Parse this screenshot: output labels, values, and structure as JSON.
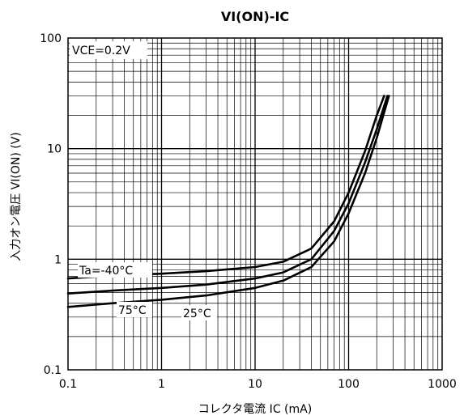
{
  "chart_data": {
    "type": "line",
    "title": "VI(ON)-IC",
    "xlabel": "コレクタ電流 IC (mA)",
    "ylabel": "入力オン電圧 VI(ON) (V)",
    "x_scale": "log",
    "y_scale": "log",
    "xlim": [
      0.1,
      1000
    ],
    "ylim": [
      0.1,
      100
    ],
    "x_ticks": [
      "0.1",
      "1",
      "10",
      "100",
      "1000"
    ],
    "y_ticks": [
      "0.1",
      "1",
      "10",
      "100"
    ],
    "grid": true,
    "condition": "VCE=0.2V",
    "series": [
      {
        "name": "Ta=-40°C",
        "x": [
          0.1,
          0.3,
          1,
          3,
          10,
          20,
          40,
          70,
          100,
          150,
          200,
          240
        ],
        "y": [
          0.67,
          0.71,
          0.74,
          0.78,
          0.85,
          0.95,
          1.25,
          2.2,
          4.0,
          9.5,
          20,
          30
        ]
      },
      {
        "name": "25°C",
        "x": [
          0.1,
          0.3,
          1,
          3,
          10,
          20,
          40,
          70,
          100,
          150,
          200,
          260
        ],
        "y": [
          0.49,
          0.52,
          0.55,
          0.59,
          0.67,
          0.76,
          1.0,
          1.8,
          3.2,
          7.5,
          15,
          30
        ]
      },
      {
        "name": "75°C",
        "x": [
          0.1,
          0.3,
          1,
          3,
          10,
          20,
          40,
          70,
          100,
          150,
          200,
          270
        ],
        "y": [
          0.37,
          0.4,
          0.43,
          0.47,
          0.55,
          0.64,
          0.85,
          1.45,
          2.6,
          6.0,
          12.5,
          30
        ]
      }
    ]
  }
}
